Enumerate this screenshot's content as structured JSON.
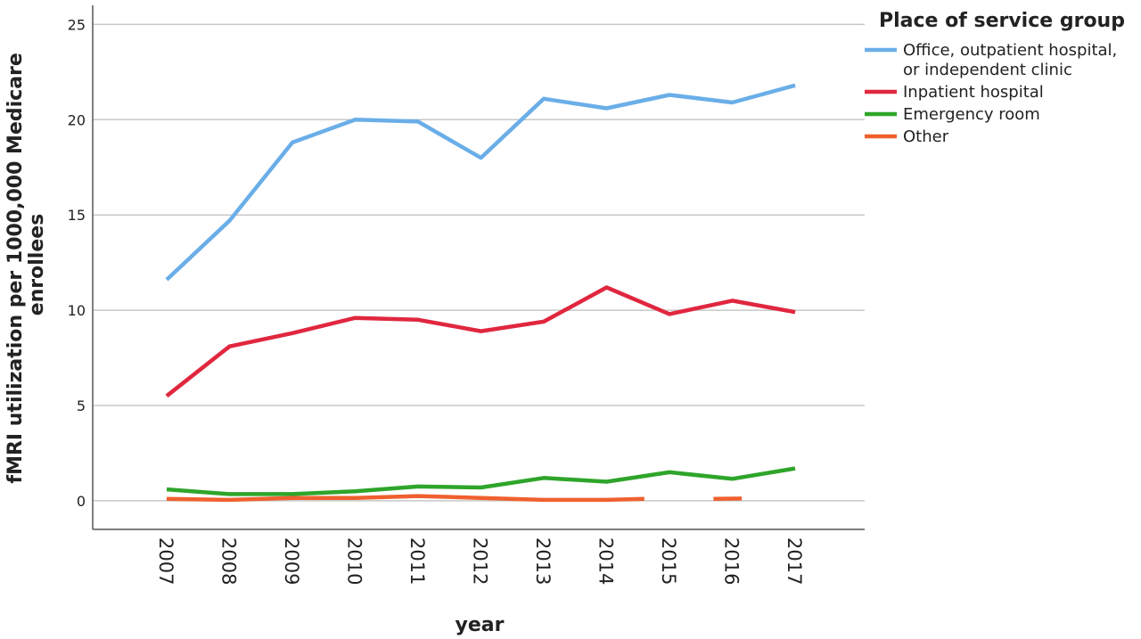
{
  "chart_data": {
    "type": "line",
    "title": "",
    "xlabel": "year",
    "ylabel_lines": [
      "fMRI utilization per 1000,000 Medicare",
      "enrollees"
    ],
    "x": [
      "2007",
      "2008",
      "2009",
      "2010",
      "2011",
      "2012",
      "2013",
      "2014",
      "2015",
      "2016",
      "2017"
    ],
    "ylim": [
      -1.5,
      26
    ],
    "yticks": [
      0,
      5,
      10,
      15,
      20,
      25
    ],
    "grid": true,
    "legend": {
      "title": "Place of service group",
      "placement": "top-right"
    },
    "series": [
      {
        "name": "Office, outpatient hospital, or independent clinic",
        "name_lines": [
          "Office, outpatient hospital,",
          "or independent clinic"
        ],
        "color": "#6aaee8",
        "values": [
          11.6,
          14.7,
          18.8,
          20.0,
          19.9,
          18.0,
          21.1,
          20.6,
          21.3,
          20.9,
          21.8
        ]
      },
      {
        "name": "Inpatient hospital",
        "name_lines": [
          "Inpatient hospital"
        ],
        "color": "#e0273f",
        "values": [
          5.5,
          8.1,
          8.8,
          9.6,
          9.5,
          8.9,
          9.4,
          11.2,
          9.8,
          10.5,
          9.9
        ]
      },
      {
        "name": "Emergency room",
        "name_lines": [
          "Emergency room"
        ],
        "color": "#2ea52a",
        "values": [
          0.6,
          0.35,
          0.35,
          0.5,
          0.75,
          0.7,
          1.2,
          1.0,
          1.5,
          1.15,
          1.7
        ]
      },
      {
        "name": "Other",
        "name_lines": [
          "Other"
        ],
        "color": "#f0602f",
        "segments": [
          {
            "x": [
              2007,
              2008,
              2009,
              2010,
              2011,
              2012,
              2013,
              2014,
              2014.6
            ],
            "values": [
              0.1,
              0.05,
              0.15,
              0.15,
              0.25,
              0.15,
              0.05,
              0.05,
              0.1
            ]
          },
          {
            "x": [
              2015.7,
              2016.15
            ],
            "values": [
              0.1,
              0.12
            ]
          }
        ]
      }
    ]
  }
}
